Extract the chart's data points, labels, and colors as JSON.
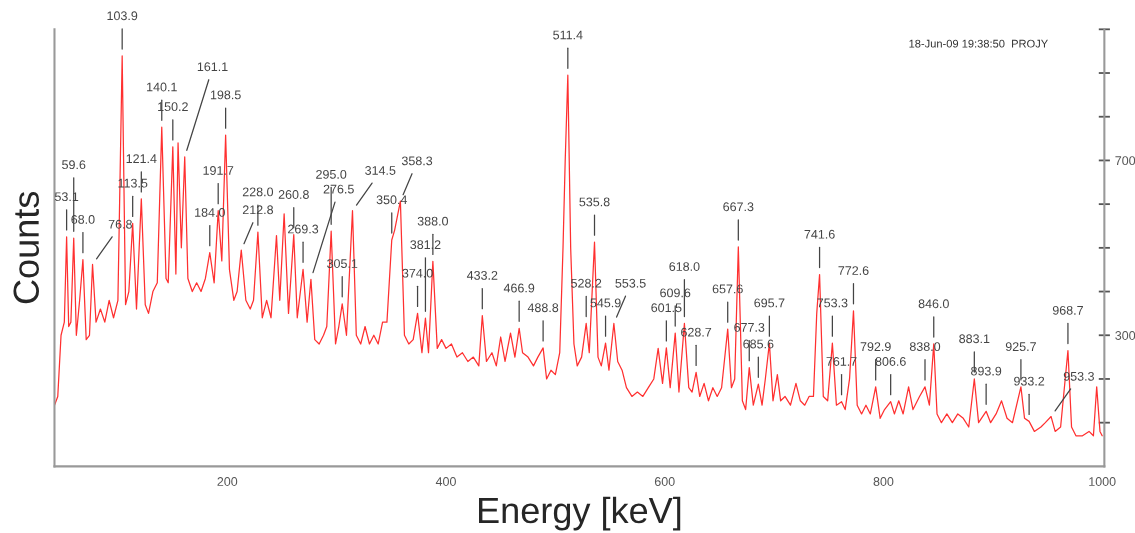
{
  "chart_data": {
    "type": "line",
    "xlabel": "Energy [keV]",
    "ylabel": "Counts",
    "xlim": [
      42,
      1002
    ],
    "xticks": [
      200,
      400,
      600,
      800,
      1000
    ],
    "ylim": [
      0,
      1000
    ],
    "yticks": [
      {
        "value": 100,
        "label": null
      },
      {
        "value": 200,
        "label": null
      },
      300,
      {
        "value": 400,
        "label": null
      },
      {
        "value": 500,
        "label": null
      },
      {
        "value": 600,
        "label": null
      },
      700,
      {
        "value": 800,
        "label": null
      },
      {
        "value": 900,
        "label": null
      },
      {
        "value": 1000,
        "label": null
      }
    ],
    "grid": false,
    "legend": false,
    "marker": "none",
    "line_style": "solid",
    "series": [
      {
        "color": "#ff3030",
        "x": [
          42,
          45,
          48,
          51,
          53.1,
          55,
          57,
          59.6,
          62,
          65,
          68.0,
          71,
          74,
          76.8,
          80,
          84,
          88,
          92,
          96,
          100,
          103.9,
          107,
          110,
          113.5,
          117,
          121.4,
          125,
          128,
          132,
          136,
          140.1,
          144,
          146,
          150.2,
          153,
          155,
          158,
          161.1,
          164,
          168,
          172,
          176,
          180,
          184.0,
          188,
          191.7,
          195,
          198.5,
          202,
          206,
          209,
          212.8,
          217,
          221,
          224,
          228.0,
          232,
          236,
          240,
          245,
          248,
          252,
          256,
          260.8,
          264,
          269.3,
          273,
          276.5,
          280,
          284,
          288,
          291,
          295.0,
          299,
          302,
          305.1,
          309,
          314.5,
          318,
          322,
          326,
          330,
          334,
          338,
          342,
          346,
          350.4,
          353,
          358.3,
          362,
          366,
          370,
          374.0,
          378,
          381.2,
          384,
          388.0,
          392,
          396,
          400,
          405,
          410,
          415,
          420,
          425,
          430,
          433.2,
          437,
          442,
          446,
          450,
          454,
          459,
          463,
          466.9,
          470,
          475,
          480,
          484,
          488.8,
          492,
          496,
          500,
          504,
          507,
          509,
          511.4,
          514,
          517,
          520,
          524,
          528.2,
          531,
          535.8,
          539,
          542,
          545.9,
          549,
          553.5,
          557,
          561,
          565,
          570,
          575,
          580,
          585,
          590,
          594,
          598,
          601.5,
          605,
          609.6,
          613,
          618.0,
          622,
          625,
          628.7,
          632,
          636,
          640,
          644,
          648,
          652,
          657.6,
          661,
          664,
          667.3,
          671,
          674,
          677.3,
          681,
          685.6,
          689,
          692,
          695.7,
          699,
          703,
          706,
          710,
          715,
          720,
          724,
          728,
          732,
          736,
          739,
          741.6,
          745,
          749,
          753.3,
          757,
          761.7,
          765,
          769,
          772.6,
          776,
          780,
          784,
          788,
          792.9,
          797,
          801,
          806.6,
          810,
          814,
          818,
          823,
          827,
          833,
          838.0,
          842,
          846.0,
          849,
          853,
          858,
          863,
          868,
          873,
          878,
          883.1,
          887,
          893.9,
          898,
          903,
          908,
          913,
          918,
          925.7,
          929,
          933.2,
          938,
          944,
          948,
          953.3,
          957,
          962,
          968.7,
          972,
          976,
          982,
          988,
          992,
          995,
          998,
          1000
        ],
        "values": [
          140,
          160,
          300,
          330,
          525,
          320,
          330,
          522,
          300,
          380,
          473,
          290,
          300,
          462,
          330,
          360,
          330,
          380,
          340,
          380,
          939,
          370,
          400,
          556,
          360,
          612,
          370,
          350,
          400,
          420,
          776,
          430,
          420,
          731,
          440,
          740,
          500,
          708,
          430,
          400,
          420,
          400,
          430,
          489,
          420,
          585,
          470,
          758,
          450,
          380,
          400,
          495,
          380,
          360,
          380,
          536,
          340,
          380,
          340,
          528,
          380,
          578,
          350,
          530,
          340,
          451,
          330,
          428,
          290,
          280,
          300,
          320,
          538,
          280,
          320,
          372,
          300,
          585,
          300,
          280,
          320,
          280,
          300,
          280,
          330,
          330,
          518,
          540,
          607,
          300,
          280,
          290,
          350,
          260,
          339,
          260,
          469,
          270,
          290,
          270,
          280,
          250,
          260,
          240,
          250,
          230,
          345,
          240,
          260,
          230,
          296,
          240,
          305,
          250,
          316,
          260,
          250,
          230,
          250,
          271,
          200,
          220,
          210,
          260,
          500,
          700,
          895,
          500,
          280,
          230,
          250,
          327,
          260,
          513,
          250,
          230,
          282,
          220,
          327,
          240,
          220,
          180,
          160,
          170,
          160,
          180,
          200,
          270,
          190,
          271,
          180,
          305,
          170,
          327,
          180,
          170,
          215,
          160,
          190,
          150,
          180,
          160,
          180,
          314,
          180,
          200,
          502,
          150,
          130,
          226,
          140,
          188,
          140,
          200,
          282,
          150,
          210,
          150,
          160,
          140,
          190,
          150,
          140,
          160,
          160,
          350,
          439,
          160,
          150,
          282,
          140,
          148,
          130,
          200,
          356,
          140,
          120,
          140,
          120,
          182,
          110,
          130,
          148,
          120,
          150,
          120,
          182,
          130,
          160,
          182,
          140,
          280,
          120,
          100,
          120,
          100,
          120,
          110,
          90,
          200,
          100,
          126,
          100,
          120,
          150,
          110,
          100,
          182,
          110,
          103,
          80,
          90,
          100,
          114,
          80,
          90,
          265,
          90,
          70,
          70,
          80,
          70,
          182,
          80,
          70
        ]
      }
    ],
    "annotations": [
      {
        "text": "53.1",
        "x": 53.1,
        "y": 525
      },
      {
        "text": "59.6",
        "x": 59.6,
        "y": 522
      },
      {
        "text": "68.0",
        "x": 68.0,
        "y": 473
      },
      {
        "text": "76.8",
        "x": 76.8,
        "y": 462
      },
      {
        "text": "103.9",
        "x": 103.9,
        "y": 939
      },
      {
        "text": "113.5",
        "x": 113.5,
        "y": 556
      },
      {
        "text": "121.4",
        "x": 121.4,
        "y": 612
      },
      {
        "text": "140.1",
        "x": 140.1,
        "y": 776
      },
      {
        "text": "150.2",
        "x": 150.2,
        "y": 731
      },
      {
        "text": "161.1",
        "x": 161.1,
        "y": 708
      },
      {
        "text": "184.0",
        "x": 184.0,
        "y": 489
      },
      {
        "text": "191.7",
        "x": 191.7,
        "y": 585
      },
      {
        "text": "198.5",
        "x": 198.5,
        "y": 758
      },
      {
        "text": "212.8",
        "x": 212.8,
        "y": 495
      },
      {
        "text": "228.0",
        "x": 228.0,
        "y": 536
      },
      {
        "text": "260.8",
        "x": 260.8,
        "y": 530
      },
      {
        "text": "269.3",
        "x": 269.3,
        "y": 451
      },
      {
        "text": "276.5",
        "x": 276.5,
        "y": 428
      },
      {
        "text": "295.0",
        "x": 295.0,
        "y": 538
      },
      {
        "text": "305.1",
        "x": 305.1,
        "y": 372
      },
      {
        "text": "314.5",
        "x": 314.5,
        "y": 585
      },
      {
        "text": "350.4",
        "x": 350.4,
        "y": 518
      },
      {
        "text": "358.3",
        "x": 358.3,
        "y": 607
      },
      {
        "text": "374.0",
        "x": 374.0,
        "y": 350
      },
      {
        "text": "381.2",
        "x": 381.2,
        "y": 339
      },
      {
        "text": "388.0",
        "x": 388.0,
        "y": 469
      },
      {
        "text": "433.2",
        "x": 433.2,
        "y": 345
      },
      {
        "text": "466.9",
        "x": 466.9,
        "y": 316
      },
      {
        "text": "488.8",
        "x": 488.8,
        "y": 271
      },
      {
        "text": "511.4",
        "x": 511.4,
        "y": 895
      },
      {
        "text": "528.2",
        "x": 528.2,
        "y": 327
      },
      {
        "text": "535.8",
        "x": 535.8,
        "y": 513
      },
      {
        "text": "545.9",
        "x": 545.9,
        "y": 282
      },
      {
        "text": "553.5",
        "x": 553.5,
        "y": 327
      },
      {
        "text": "601.5",
        "x": 601.5,
        "y": 271
      },
      {
        "text": "609.6",
        "x": 609.6,
        "y": 305
      },
      {
        "text": "618.0",
        "x": 618.0,
        "y": 327
      },
      {
        "text": "628.7",
        "x": 628.7,
        "y": 215
      },
      {
        "text": "657.6",
        "x": 657.6,
        "y": 314
      },
      {
        "text": "667.3",
        "x": 667.3,
        "y": 502
      },
      {
        "text": "677.3",
        "x": 677.3,
        "y": 226
      },
      {
        "text": "685.6",
        "x": 685.6,
        "y": 188
      },
      {
        "text": "695.7",
        "x": 695.7,
        "y": 282
      },
      {
        "text": "741.6",
        "x": 741.6,
        "y": 439
      },
      {
        "text": "753.3",
        "x": 753.3,
        "y": 282
      },
      {
        "text": "761.7",
        "x": 761.7,
        "y": 148
      },
      {
        "text": "772.6",
        "x": 772.6,
        "y": 356
      },
      {
        "text": "792.9",
        "x": 792.9,
        "y": 182
      },
      {
        "text": "806.6",
        "x": 806.6,
        "y": 148
      },
      {
        "text": "838.0",
        "x": 838.0,
        "y": 182
      },
      {
        "text": "846.0",
        "x": 846.0,
        "y": 280
      },
      {
        "text": "883.1",
        "x": 883.1,
        "y": 200
      },
      {
        "text": "893.9",
        "x": 893.9,
        "y": 126
      },
      {
        "text": "925.7",
        "x": 925.7,
        "y": 182
      },
      {
        "text": "933.2",
        "x": 933.2,
        "y": 103
      },
      {
        "text": "953.3",
        "x": 953.3,
        "y": 114
      },
      {
        "text": "968.7",
        "x": 968.7,
        "y": 265
      },
      "18-Jun-09 19:38:50  PROJY"
    ]
  }
}
